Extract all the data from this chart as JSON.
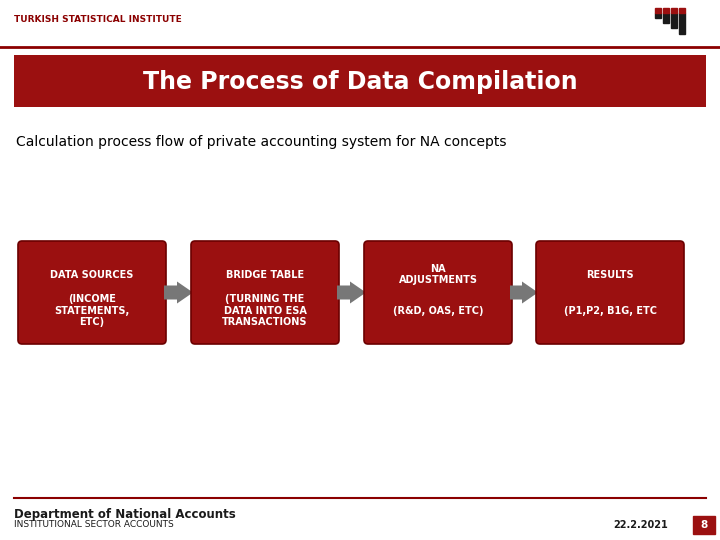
{
  "slide_bg": "#ffffff",
  "header_text": "TURKISH STATISTICAL INSTITUTE",
  "header_color": "#8B0000",
  "title_text": "The Process of Data Compilation",
  "title_bg": "#9B1010",
  "title_text_color": "#ffffff",
  "subtitle_text": "Calculation process flow of private accounting system for NA concepts",
  "subtitle_color": "#000000",
  "box_color": "#9B1010",
  "box_text_color": "#ffffff",
  "arrow_color": "#777777",
  "line_color": "#8B0000",
  "boxes": [
    {
      "top": "DATA SOURCES",
      "bottom": "(INCOME\nSTATEMENTS,\nETC)"
    },
    {
      "top": "BRIDGE TABLE",
      "bottom": "(TURNING THE\nDATA INTO ESA\nTRANSACTIONS"
    },
    {
      "top": "NA\nADJUSTMENTS",
      "bottom": "(R&D, OAS, ETC)"
    },
    {
      "top": "RESULTS",
      "bottom": "(P1,P2, B1G, ETC"
    }
  ],
  "footer_dept": "Department of National Accounts",
  "footer_sub": "INSTITUTIONAL SECTOR ACCOUNTS",
  "footer_date": "22.2.2021",
  "footer_page": "8"
}
